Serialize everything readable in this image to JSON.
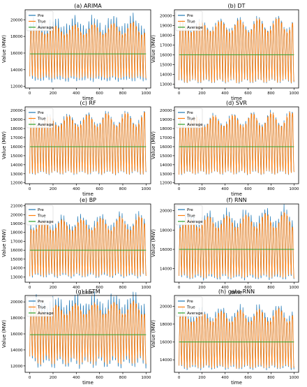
{
  "colors": {
    "pre": "#1f77b4",
    "true": "#ff7f0e",
    "average": "#2ca02c",
    "axis": "#000000"
  },
  "chart_data": [
    {
      "type": "line",
      "title": "(a)  ARIMA",
      "xlabel": "time",
      "ylabel": "Value (MW)",
      "xlim": [
        -40,
        1040
      ],
      "ylim": [
        11800,
        21200
      ],
      "xticks": [
        0,
        200,
        400,
        600,
        800,
        1000
      ],
      "yticks": [
        12000,
        14000,
        16000,
        18000,
        20000
      ],
      "legend_position": "top-left",
      "average": 15900,
      "cycles": 42,
      "troughs": [
        12900,
        13200
      ],
      "peaks": [
        18300,
        19900
      ],
      "pre_spike": [
        600,
        1300
      ],
      "series": [
        {
          "name": "Pre"
        },
        {
          "name": "True"
        },
        {
          "name": "Average"
        }
      ]
    },
    {
      "type": "line",
      "title": "(b)  DT",
      "xlabel": "time",
      "ylabel": "Value (MW)",
      "xlim": [
        -40,
        1040
      ],
      "ylim": [
        12600,
        20600
      ],
      "xticks": [
        0,
        200,
        400,
        600,
        800,
        1000
      ],
      "yticks": [
        13000,
        14000,
        15000,
        16000,
        17000,
        18000,
        19000,
        20000
      ],
      "legend_position": "top-left",
      "average": 16000,
      "cycles": 42,
      "troughs": [
        13100,
        13500
      ],
      "peaks": [
        18400,
        20000
      ],
      "pre_spike": [
        150,
        350
      ],
      "series": [
        {
          "name": "Pre"
        },
        {
          "name": "True"
        },
        {
          "name": "Average"
        }
      ]
    },
    {
      "type": "line",
      "title": "(c)  RF",
      "xlabel": "time",
      "ylabel": "Value (MW)",
      "xlim": [
        -40,
        1040
      ],
      "ylim": [
        11900,
        20400
      ],
      "xticks": [
        0,
        200,
        400,
        600,
        800,
        1000
      ],
      "yticks": [
        12000,
        13000,
        14000,
        15000,
        16000,
        17000,
        18000,
        19000,
        20000
      ],
      "legend_position": "top-left",
      "average": 16000,
      "cycles": 42,
      "troughs": [
        12900,
        13300
      ],
      "peaks": [
        18300,
        20000
      ],
      "pre_spike": [
        150,
        350
      ],
      "series": [
        {
          "name": "Pre"
        },
        {
          "name": "True"
        },
        {
          "name": "Average"
        }
      ]
    },
    {
      "type": "line",
      "title": "(d)  SVR",
      "xlabel": "time",
      "ylabel": "Value (MW)",
      "xlim": [
        -40,
        1040
      ],
      "ylim": [
        11900,
        20400
      ],
      "xticks": [
        0,
        200,
        400,
        600,
        800,
        1000
      ],
      "yticks": [
        12000,
        13000,
        14000,
        15000,
        16000,
        17000,
        18000,
        19000,
        20000
      ],
      "legend_position": "top-left",
      "average": 16000,
      "cycles": 42,
      "troughs": [
        12900,
        13300
      ],
      "peaks": [
        18300,
        20000
      ],
      "pre_spike": [
        100,
        300
      ],
      "series": [
        {
          "name": "Pre"
        },
        {
          "name": "True"
        },
        {
          "name": "Average"
        }
      ]
    },
    {
      "type": "line",
      "title": "(e)  BP",
      "xlabel": "time",
      "ylabel": "Value (MW)",
      "xlim": [
        -40,
        1040
      ],
      "ylim": [
        12400,
        21200
      ],
      "xticks": [
        0,
        200,
        400,
        600,
        800,
        1000
      ],
      "yticks": [
        13000,
        14000,
        15000,
        16000,
        17000,
        18000,
        19000,
        20000,
        21000
      ],
      "legend_position": "top-left",
      "average": 16000,
      "cycles": 42,
      "troughs": [
        13000,
        13400
      ],
      "peaks": [
        18300,
        20000
      ],
      "pre_spike": [
        300,
        700
      ],
      "series": [
        {
          "name": "Pre"
        },
        {
          "name": "True"
        },
        {
          "name": "Average"
        }
      ]
    },
    {
      "type": "line",
      "title": "(f)  RNN",
      "xlabel": "time",
      "ylabel": "Value (MW)",
      "xlim": [
        -40,
        1040
      ],
      "ylim": [
        12600,
        20700
      ],
      "xticks": [
        0,
        200,
        400,
        600,
        800,
        1000
      ],
      "yticks": [
        14000,
        16000,
        18000,
        20000
      ],
      "legend_position": "top-left",
      "average": 16000,
      "cycles": 42,
      "troughs": [
        13000,
        13400
      ],
      "peaks": [
        18300,
        20000
      ],
      "pre_spike": [
        400,
        800
      ],
      "series": [
        {
          "name": "Pre"
        },
        {
          "name": "True"
        },
        {
          "name": "Average"
        }
      ]
    },
    {
      "type": "line",
      "title": "(g)  LSTM",
      "xlabel": "time",
      "ylabel": "Value (MW)",
      "xlim": [
        -40,
        1040
      ],
      "ylim": [
        11200,
        20800
      ],
      "xticks": [
        0,
        200,
        400,
        600,
        800,
        1000
      ],
      "yticks": [
        12000,
        14000,
        16000,
        18000,
        20000
      ],
      "legend_position": "top-left",
      "average": 15900,
      "cycles": 42,
      "troughs": [
        12100,
        13200
      ],
      "peaks": [
        18500,
        20300
      ],
      "pre_spike": [
        800,
        1500
      ],
      "series": [
        {
          "name": "Pre"
        },
        {
          "name": "True"
        },
        {
          "name": "Average"
        }
      ]
    },
    {
      "type": "line",
      "title": "(h)  gate-RNN",
      "xlabel": "time",
      "ylabel": "Value (MW)",
      "xlim": [
        -40,
        1040
      ],
      "ylim": [
        12600,
        21200
      ],
      "xticks": [
        0,
        200,
        400,
        600,
        800,
        1000
      ],
      "yticks": [
        14000,
        16000,
        18000,
        20000
      ],
      "legend_position": "top-left",
      "average": 16000,
      "cycles": 42,
      "troughs": [
        13000,
        13400
      ],
      "peaks": [
        18300,
        20000
      ],
      "pre_spike": [
        300,
        700
      ],
      "series": [
        {
          "name": "Pre"
        },
        {
          "name": "True"
        },
        {
          "name": "Average"
        }
      ]
    }
  ]
}
